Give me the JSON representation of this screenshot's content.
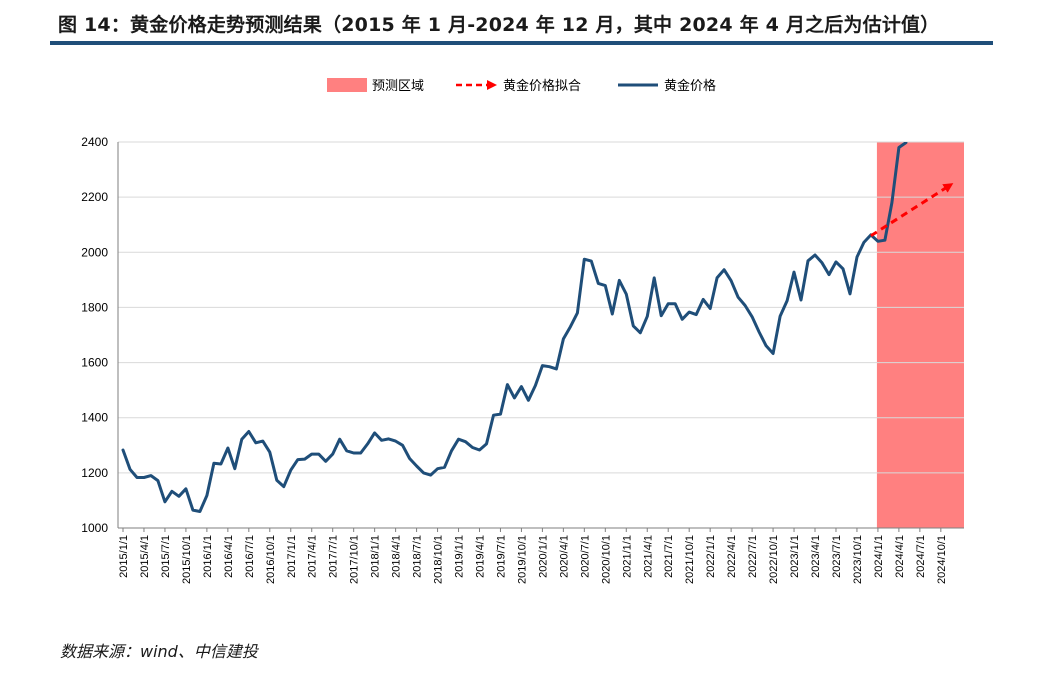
{
  "figure": {
    "title": "图 14：黄金价格走势预测结果（2015 年 1 月-2024 年 12 月，其中 2024 年 4 月之后为估计值）",
    "source": "数据来源：wind、中信建投"
  },
  "colors": {
    "title_rule": "#1f4e79",
    "gold_line": "#1f4e79",
    "forecast_line": "#ff0000",
    "forecast_region": "#ff8080",
    "gridline": "#d9d9d9"
  },
  "chart_data": {
    "type": "line",
    "legend_position": "top-center",
    "grid": "horizontal",
    "ylim": [
      1000,
      2400
    ],
    "yticks": [
      1000,
      1200,
      1400,
      1600,
      1800,
      2000,
      2200,
      2400
    ],
    "xticks": [
      "2015/1/1",
      "2015/4/1",
      "2015/7/1",
      "2015/10/1",
      "2016/1/1",
      "2016/4/1",
      "2016/7/1",
      "2016/10/1",
      "2017/1/1",
      "2017/4/1",
      "2017/7/1",
      "2017/10/1",
      "2018/1/1",
      "2018/4/1",
      "2018/7/1",
      "2018/10/1",
      "2019/1/1",
      "2019/4/1",
      "2019/7/1",
      "2019/10/1",
      "2020/1/1",
      "2020/4/1",
      "2020/7/1",
      "2020/10/1",
      "2021/1/1",
      "2021/4/1",
      "2021/7/1",
      "2021/10/1",
      "2022/1/1",
      "2022/4/1",
      "2022/7/1",
      "2022/10/1",
      "2023/1/1",
      "2023/4/1",
      "2023/7/1",
      "2023/10/1",
      "2024/1/1",
      "2024/4/1",
      "2024/7/1",
      "2024/10/1"
    ],
    "forecast_region": {
      "label": "预测区域",
      "x_start": "2024/1",
      "x_end": "2024/12"
    },
    "series": [
      {
        "name": "黄金价格",
        "style": "solid",
        "x": [
          "2015/1",
          "2015/2",
          "2015/3",
          "2015/4",
          "2015/5",
          "2015/6",
          "2015/7",
          "2015/8",
          "2015/9",
          "2015/10",
          "2015/11",
          "2015/12",
          "2016/1",
          "2016/2",
          "2016/3",
          "2016/4",
          "2016/5",
          "2016/6",
          "2016/7",
          "2016/8",
          "2016/9",
          "2016/10",
          "2016/11",
          "2016/12",
          "2017/1",
          "2017/2",
          "2017/3",
          "2017/4",
          "2017/5",
          "2017/6",
          "2017/7",
          "2017/8",
          "2017/9",
          "2017/10",
          "2017/11",
          "2017/12",
          "2018/1",
          "2018/2",
          "2018/3",
          "2018/4",
          "2018/5",
          "2018/6",
          "2018/7",
          "2018/8",
          "2018/9",
          "2018/10",
          "2018/11",
          "2018/12",
          "2019/1",
          "2019/2",
          "2019/3",
          "2019/4",
          "2019/5",
          "2019/6",
          "2019/7",
          "2019/8",
          "2019/9",
          "2019/10",
          "2019/11",
          "2019/12",
          "2020/1",
          "2020/2",
          "2020/3",
          "2020/4",
          "2020/5",
          "2020/6",
          "2020/7",
          "2020/8",
          "2020/9",
          "2020/10",
          "2020/11",
          "2020/12",
          "2021/1",
          "2021/2",
          "2021/3",
          "2021/4",
          "2021/5",
          "2021/6",
          "2021/7",
          "2021/8",
          "2021/9",
          "2021/10",
          "2021/11",
          "2021/12",
          "2022/1",
          "2022/2",
          "2022/3",
          "2022/4",
          "2022/5",
          "2022/6",
          "2022/7",
          "2022/8",
          "2022/9",
          "2022/10",
          "2022/11",
          "2022/12",
          "2023/1",
          "2023/2",
          "2023/3",
          "2023/4",
          "2023/5",
          "2023/6",
          "2023/7",
          "2023/8",
          "2023/9",
          "2023/10",
          "2023/11",
          "2023/12",
          "2024/1",
          "2024/2",
          "2024/3",
          "2024/4",
          "2024/5"
        ],
        "values": [
          1283,
          1213,
          1183,
          1183,
          1190,
          1172,
          1095,
          1133,
          1115,
          1142,
          1065,
          1060,
          1118,
          1235,
          1232,
          1290,
          1215,
          1322,
          1350,
          1309,
          1315,
          1275,
          1173,
          1150,
          1210,
          1248,
          1250,
          1268,
          1268,
          1242,
          1268,
          1322,
          1280,
          1272,
          1272,
          1305,
          1345,
          1318,
          1323,
          1315,
          1300,
          1252,
          1225,
          1200,
          1192,
          1215,
          1220,
          1280,
          1322,
          1313,
          1292,
          1283,
          1305,
          1409,
          1413,
          1520,
          1472,
          1513,
          1463,
          1517,
          1589,
          1585,
          1577,
          1686,
          1730,
          1780,
          1975,
          1968,
          1887,
          1879,
          1776,
          1898,
          1848,
          1733,
          1708,
          1768,
          1907,
          1770,
          1813,
          1813,
          1757,
          1783,
          1774,
          1829,
          1796,
          1908,
          1937,
          1897,
          1837,
          1807,
          1766,
          1711,
          1661,
          1633,
          1768,
          1824,
          1928,
          1827,
          1969,
          1990,
          1962,
          1919,
          1965,
          1940,
          1849,
          1983,
          2036,
          2063,
          2040,
          2044,
          2180,
          2380,
          2398
        ]
      },
      {
        "name": "黄金价格拟合",
        "style": "dashed-arrow",
        "x": [
          "2023/12",
          "2024/12"
        ],
        "values": [
          2060,
          2245
        ]
      }
    ]
  }
}
